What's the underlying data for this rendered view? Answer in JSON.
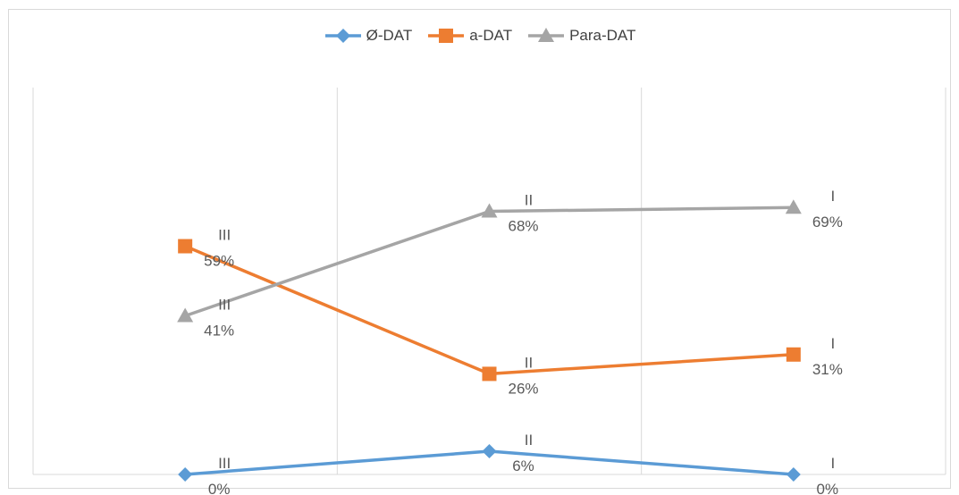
{
  "chart_data": {
    "type": "line",
    "categories": [
      "",
      "",
      ""
    ],
    "series": [
      {
        "name": "Ø-DAT",
        "color": "#5b9bd5",
        "marker": "diamond",
        "values": [
          0,
          6,
          0
        ],
        "point_labels": [
          "III",
          "II",
          "I"
        ],
        "value_labels": [
          "0%",
          "6%",
          "0%"
        ]
      },
      {
        "name": "a-DAT",
        "color": "#ed7d31",
        "marker": "square",
        "values": [
          59,
          26,
          31
        ],
        "point_labels": [
          "III",
          "II",
          "I"
        ],
        "value_labels": [
          "59%",
          "26%",
          "31%"
        ]
      },
      {
        "name": "Para-DAT",
        "color": "#a5a5a5",
        "marker": "triangle",
        "values": [
          41,
          68,
          69
        ],
        "point_labels": [
          "III",
          "II",
          "I"
        ],
        "value_labels": [
          "41%",
          "68%",
          "69%"
        ]
      }
    ],
    "ylim": [
      0,
      100
    ],
    "grid": "vertical",
    "legend_position": "top"
  }
}
